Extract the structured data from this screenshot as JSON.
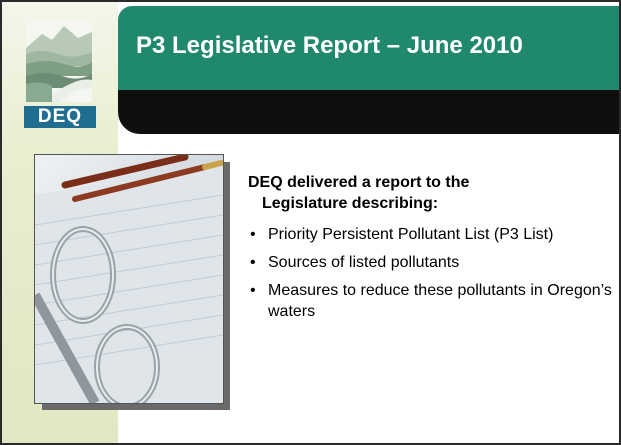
{
  "logo": {
    "wordmark": "DEQ",
    "icon": "mountains-river-icon"
  },
  "slide": {
    "title": "P3 Legislative Report – June 2010",
    "lead_line_1": "DEQ delivered a report to the",
    "lead_line_2": "Legislature describing:",
    "bullets": [
      "Priority Persistent Pollutant List (P3 List)",
      "Sources of listed pollutants",
      "Measures to reduce these pollutants in Oregon’s waters"
    ],
    "photo": "binder-with-pen-photo"
  },
  "colors": {
    "title_bar": "#20886d",
    "accent_dark": "#0f0f0f",
    "logo_blue": "#1f6e8f",
    "left_band": "#e8eecf"
  }
}
